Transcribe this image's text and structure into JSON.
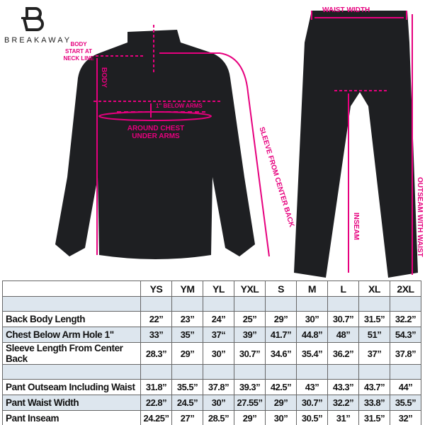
{
  "brand": {
    "name": "BREAKAWAY"
  },
  "annotations": {
    "body_start": "BODY START AT NECK LINE",
    "body": "BODY",
    "below_arms": "1\" BELOW ARMS",
    "around_chest": "AROUND CHEST UNDER ARMS",
    "sleeve": "SLEEVE FROM CENTER BACK",
    "waist_width": "WAIST WIDTH",
    "inseam": "INSEAM",
    "outseam": "OUTSEAM WITH WAIST"
  },
  "colors": {
    "accent": "#e6007e",
    "garment": "#1e1f22",
    "row_shade": "#dde6ee"
  },
  "table": {
    "sizes": [
      "YS",
      "YM",
      "YL",
      "YXL",
      "S",
      "M",
      "L",
      "XL",
      "2XL"
    ],
    "rows": [
      {
        "label": "Back Body Length",
        "values": [
          "22”",
          "23”",
          "24”",
          "25”",
          "29”",
          "30”",
          "30.7”",
          "31.5”",
          "32.2”"
        ]
      },
      {
        "label": "Chest Below Arm Hole 1\"",
        "values": [
          "33”",
          "35”",
          "37“",
          "39”",
          "41.7”",
          "44.8”",
          "48”",
          "51”",
          "54.3”"
        ]
      },
      {
        "label": "Sleeve Length From Center Back",
        "values": [
          "28.3”",
          "29”",
          "30”",
          "30.7”",
          "34.6”",
          "35.4”",
          "36.2”",
          "37”",
          "37.8”"
        ]
      },
      {
        "label": "Pant Outseam Including Waist",
        "values": [
          "31.8”",
          "35.5”",
          "37.8”",
          "39.3”",
          "42.5”",
          "43”",
          "43.3”",
          "43.7”",
          "44”"
        ]
      },
      {
        "label": "Pant Waist Width",
        "values": [
          "22.8”",
          "24.5”",
          "30”",
          "27.55”",
          "29”",
          "30.7”",
          "32.2”",
          "33.8”",
          "35.5”"
        ]
      },
      {
        "label": "Pant Inseam",
        "values": [
          "24.25”",
          "27”",
          "28.5”",
          "29”",
          "30”",
          "30.5”",
          "31”",
          "31.5”",
          "32”"
        ]
      }
    ]
  }
}
